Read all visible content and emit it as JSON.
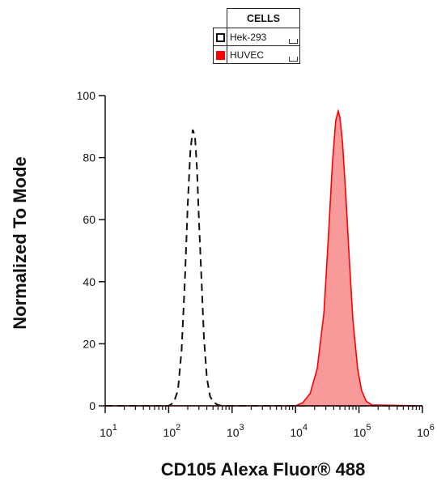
{
  "legend": {
    "title": "CELLS",
    "entries": [
      {
        "label": "Hek-293",
        "style": "dashed-outline",
        "color": "#111111"
      },
      {
        "label": "HUVEC",
        "style": "filled",
        "color": "#ff0000"
      }
    ]
  },
  "chart_data": {
    "type": "area",
    "xlabel": "CD105 Alexa Fluor® 488",
    "ylabel": "Normalized To Mode",
    "xscale": "log",
    "xlim": [
      10,
      1000000
    ],
    "ylim": [
      0,
      100
    ],
    "x_ticks": [
      "10",
      "10",
      "10",
      "10",
      "10",
      "10"
    ],
    "x_tick_exponents": [
      "1",
      "2",
      "3",
      "4",
      "5",
      "6"
    ],
    "x_tick_values": [
      10,
      100,
      1000,
      10000,
      100000,
      1000000
    ],
    "y_ticks": [
      0,
      20,
      40,
      60,
      80,
      100
    ],
    "grid": false,
    "legend_position": "top-center",
    "series": [
      {
        "name": "Hek-293",
        "style": "dashed-outline",
        "color": "#111111",
        "x": [
          10,
          100,
          120,
          140,
          160,
          180,
          200,
          220,
          240,
          260,
          280,
          300,
          330,
          360,
          400,
          450,
          520,
          600,
          700,
          1000000
        ],
        "y": [
          0,
          0,
          1,
          5,
          18,
          40,
          65,
          82,
          89,
          87,
          76,
          60,
          40,
          22,
          9,
          3,
          1,
          0.3,
          0,
          0
        ]
      },
      {
        "name": "HUVEC",
        "style": "filled",
        "color": "#ff0000",
        "fill_color": "#f99a9a",
        "x": [
          10,
          10000,
          13000,
          17000,
          22000,
          28000,
          33000,
          38000,
          43000,
          47000,
          50000,
          55000,
          62000,
          70000,
          80000,
          95000,
          110000,
          130000,
          160000,
          1000000
        ],
        "y": [
          0,
          0,
          1,
          4,
          12,
          30,
          55,
          78,
          92,
          95,
          93,
          85,
          68,
          48,
          28,
          12,
          5,
          1.5,
          0.3,
          0
        ]
      }
    ]
  }
}
